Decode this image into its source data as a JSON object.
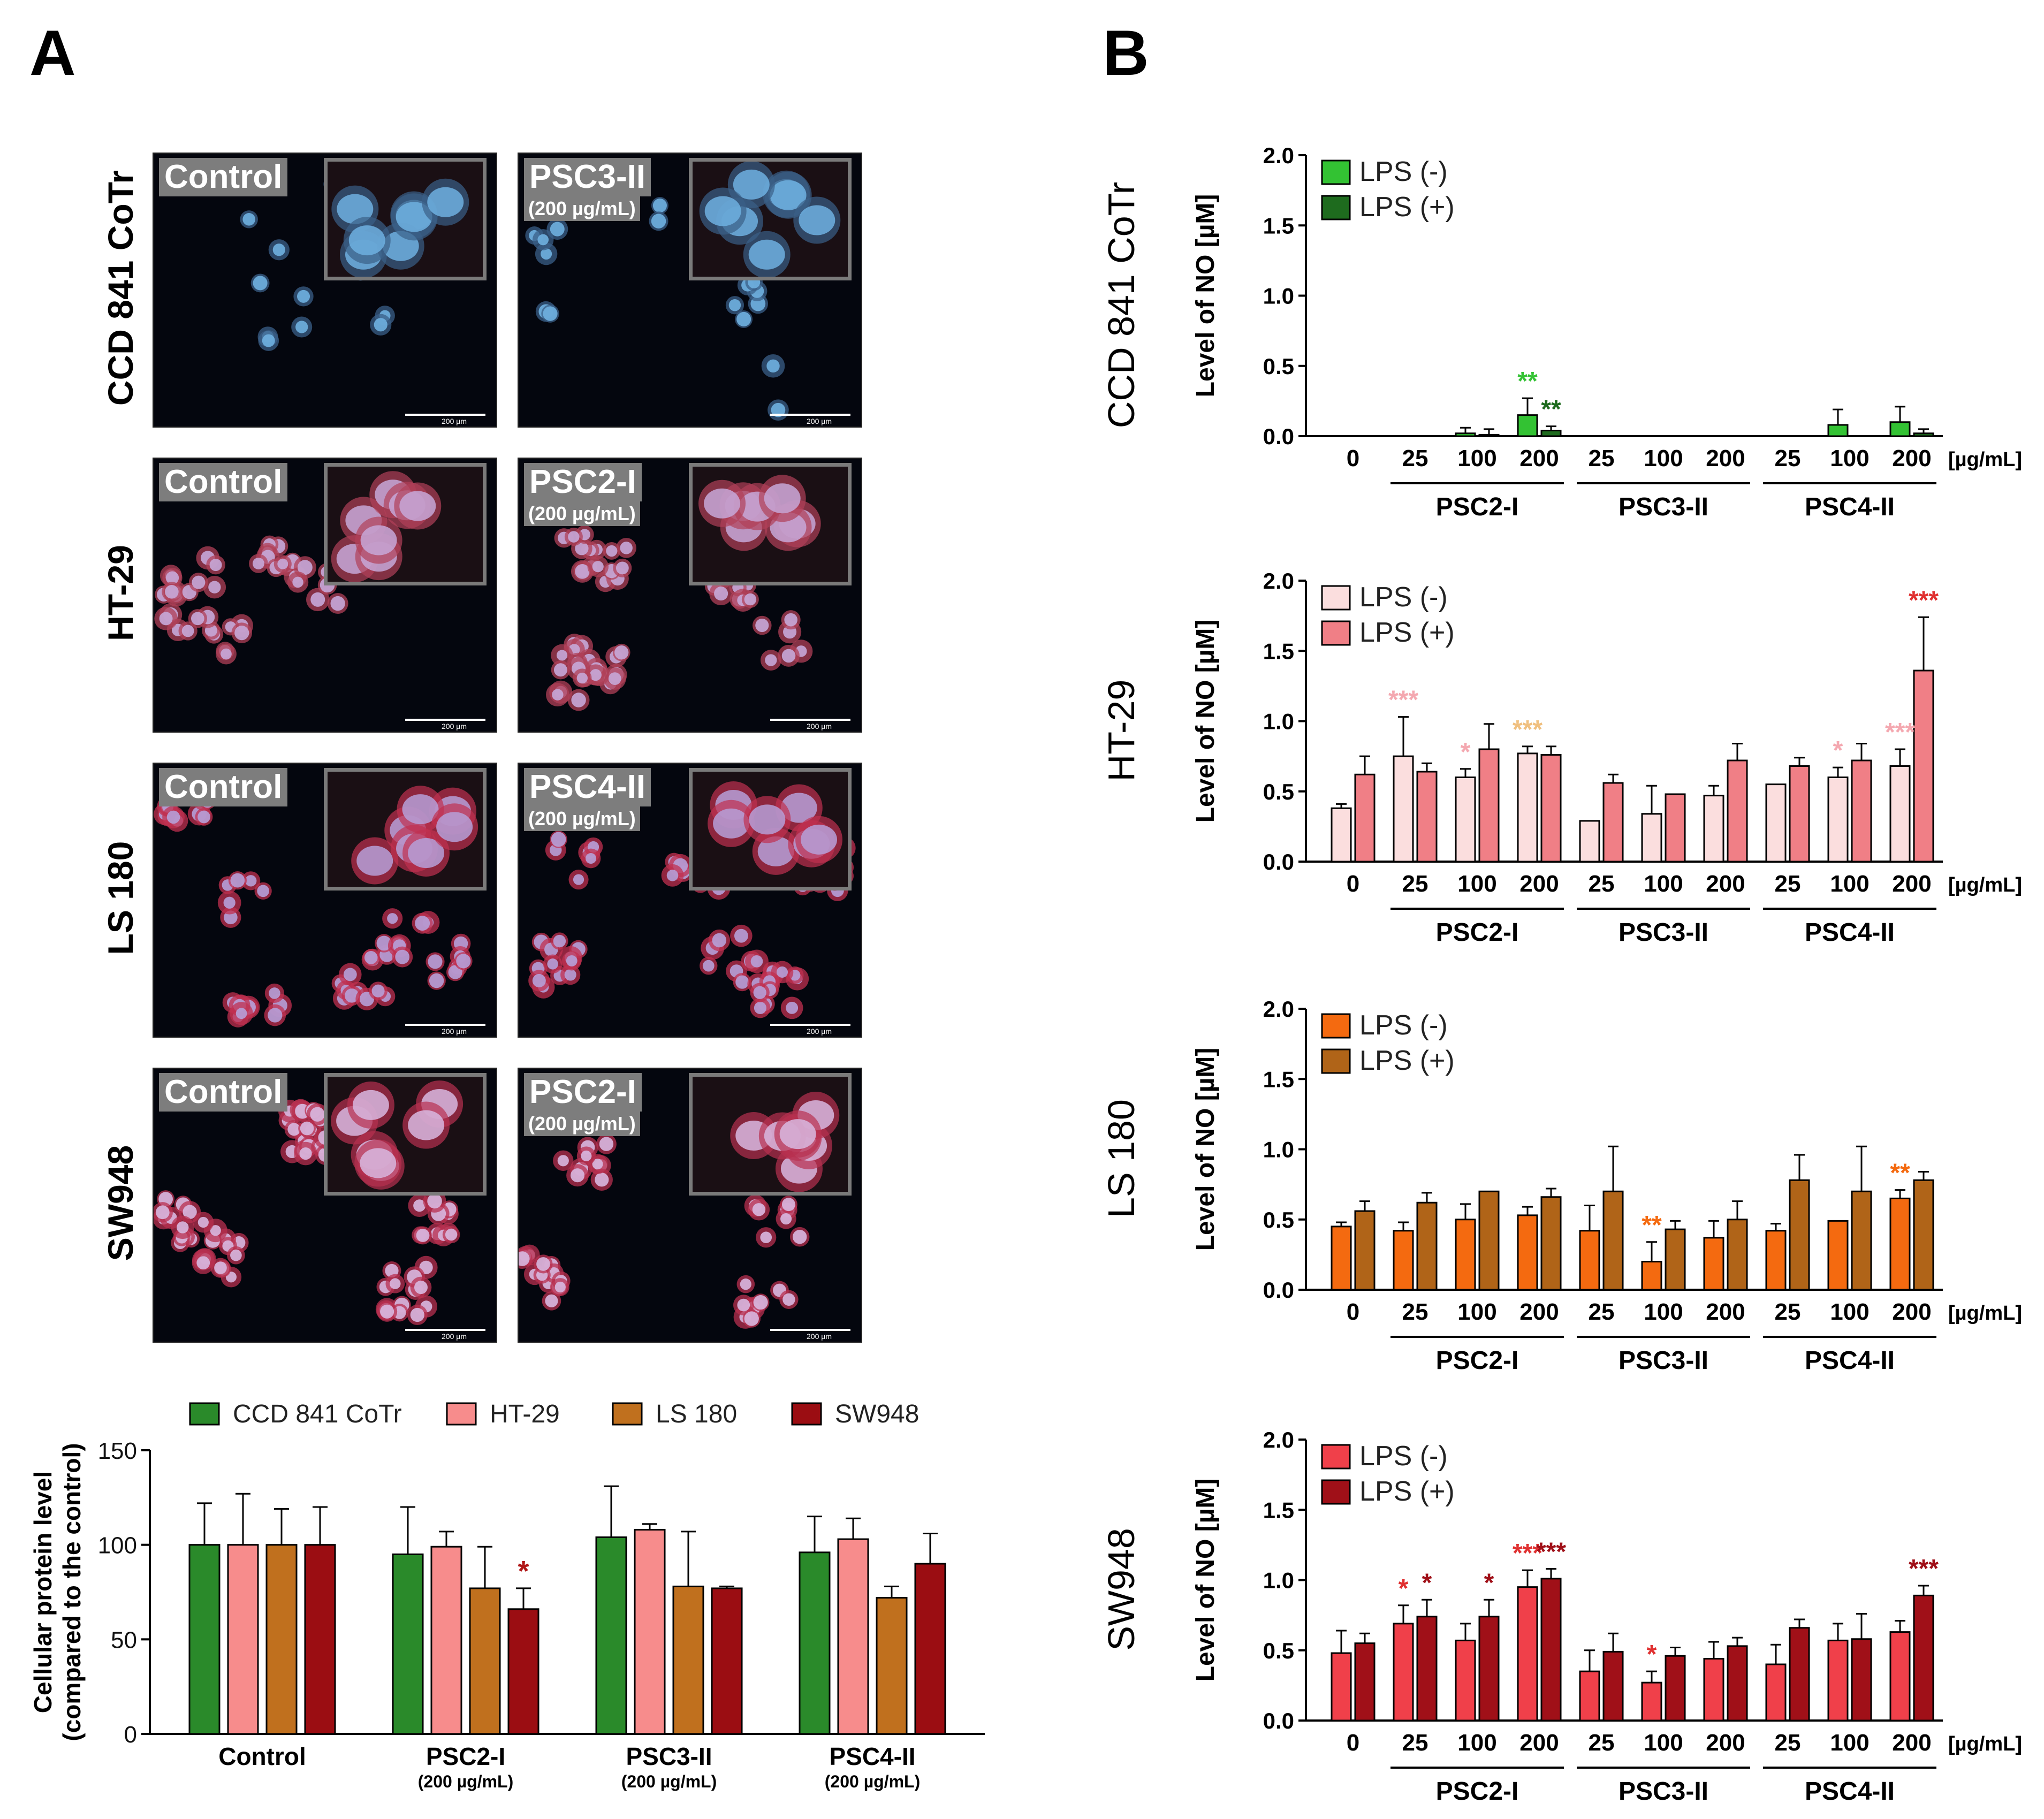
{
  "panels": {
    "a": "A",
    "b": "B"
  },
  "micrographs": {
    "rows": [
      {
        "cell_line": "CCD 841 CoTr",
        "left_label": "Control",
        "right_label": "PSC3-II",
        "right_dose": "(200 µg/mL)",
        "nucleus_color": "#6fb0e0",
        "cyto_color": "#3a5f88"
      },
      {
        "cell_line": "HT-29",
        "left_label": "Control",
        "right_label": "PSC2-I",
        "right_dose": "(200 µg/mL)",
        "nucleus_color": "#c7a8d8",
        "cyto_color": "#b04058"
      },
      {
        "cell_line": "LS 180",
        "left_label": "Control",
        "right_label": "PSC4-II",
        "right_dose": "(200 µg/mL)",
        "nucleus_color": "#b6a0d8",
        "cyto_color": "#c03050"
      },
      {
        "cell_line": "SW948",
        "left_label": "Control",
        "right_label": "PSC2-I",
        "right_dose": "(200 µg/mL)",
        "nucleus_color": "#d8b8e0",
        "cyto_color": "#b83050"
      }
    ],
    "scalebar": "200 µm"
  },
  "chart_data": [
    {
      "type": "bar",
      "id": "protein",
      "ylabel": "Cellular protein level",
      "ylabel2": "(compared to the control)",
      "ylim": [
        0,
        150
      ],
      "yticks": [
        "0",
        "50",
        "100",
        "150"
      ],
      "groups": [
        {
          "label": "Control",
          "sub": ""
        },
        {
          "label": "PSC2-I",
          "sub": "(200 µg/mL)"
        },
        {
          "label": "PSC3-II",
          "sub": "(200 µg/mL)"
        },
        {
          "label": "PSC4-II",
          "sub": "(200 µg/mL)"
        }
      ],
      "series": [
        {
          "name": "CCD 841 CoTr",
          "color": "#2a8a2a",
          "values": [
            100,
            95,
            104,
            96
          ],
          "errors": [
            22,
            25,
            27,
            19
          ]
        },
        {
          "name": "HT-29",
          "color": "#f78c8c",
          "values": [
            100,
            99,
            108,
            103
          ],
          "errors": [
            27,
            8,
            3,
            11
          ]
        },
        {
          "name": "LS 180",
          "color": "#c0701e",
          "values": [
            100,
            77,
            78,
            72
          ],
          "errors": [
            19,
            22,
            29,
            6
          ]
        },
        {
          "name": "SW948",
          "color": "#9b0d12",
          "values": [
            100,
            66,
            77,
            90
          ],
          "errors": [
            20,
            11,
            1,
            16
          ]
        }
      ],
      "annotations": [
        {
          "group": 1,
          "series": 3,
          "text": "*",
          "color": "#b01818"
        }
      ]
    },
    {
      "type": "bar",
      "id": "ccd",
      "row_label": "CCD 841 CoTr",
      "ylabel": "Level of NO [µM]",
      "ylim": [
        0,
        2.0
      ],
      "yticks": [
        "0.0",
        "0.5",
        "1.0",
        "1.5",
        "2.0"
      ],
      "categories": [
        "0",
        "25",
        "100",
        "200",
        "25",
        "100",
        "200",
        "25",
        "100",
        "200"
      ],
      "unit": "[µg/mL]",
      "groups": [
        "PSC2-I",
        "PSC3-II",
        "PSC4-II"
      ],
      "series": [
        {
          "name": "LPS (-)",
          "color": "#33c233",
          "values": [
            0,
            0,
            0.02,
            0.15,
            0,
            0,
            0,
            0,
            0.08,
            0.1
          ],
          "errors": [
            0,
            0,
            0.04,
            0.12,
            0,
            0,
            0,
            0,
            0.11,
            0.11
          ]
        },
        {
          "name": "LPS (+)",
          "color": "#1e6b1e",
          "values": [
            0,
            0,
            0.01,
            0.04,
            0,
            0,
            0,
            0,
            0,
            0.02
          ],
          "errors": [
            0,
            0,
            0.04,
            0.03,
            0,
            0,
            0,
            0,
            0,
            0.03
          ]
        }
      ],
      "annotations": [
        {
          "index": 3,
          "series": 0,
          "text": "**",
          "color": "#33c233"
        },
        {
          "index": 3,
          "series": 1,
          "text": "**",
          "color": "#1e6b1e"
        }
      ]
    },
    {
      "type": "bar",
      "id": "ht29",
      "row_label": "HT-29",
      "ylabel": "Level of NO [µM]",
      "ylim": [
        0,
        2.0
      ],
      "yticks": [
        "0.0",
        "0.5",
        "1.0",
        "1.5",
        "2.0"
      ],
      "categories": [
        "0",
        "25",
        "100",
        "200",
        "25",
        "100",
        "200",
        "25",
        "100",
        "200"
      ],
      "unit": "[µg/mL]",
      "groups": [
        "PSC2-I",
        "PSC3-II",
        "PSC4-II"
      ],
      "series": [
        {
          "name": "LPS (-)",
          "color": "#fbdede",
          "values": [
            0.38,
            0.75,
            0.6,
            0.77,
            0.29,
            0.34,
            0.47,
            0.55,
            0.6,
            0.68
          ],
          "errors": [
            0.03,
            0.28,
            0.06,
            0.05,
            0,
            0.2,
            0.07,
            0,
            0.07,
            0.12
          ]
        },
        {
          "name": "LPS (+)",
          "color": "#f07f86",
          "values": [
            0.62,
            0.64,
            0.8,
            0.76,
            0.56,
            0.48,
            0.72,
            0.68,
            0.72,
            1.36
          ],
          "errors": [
            0.13,
            0.06,
            0.18,
            0.06,
            0.06,
            0,
            0.12,
            0.06,
            0.12,
            0.38
          ]
        }
      ],
      "annotations": [
        {
          "index": 1,
          "series": 0,
          "text": "***",
          "color": "#f4a8b0"
        },
        {
          "index": 2,
          "series": 0,
          "text": "*",
          "color": "#f4a8b0"
        },
        {
          "index": 3,
          "series": 0,
          "text": "***",
          "color": "#f0c080"
        },
        {
          "index": 8,
          "series": 0,
          "text": "*",
          "color": "#f4a8b0"
        },
        {
          "index": 9,
          "series": 0,
          "text": "***",
          "color": "#f4a8b0"
        },
        {
          "index": 9,
          "series": 1,
          "text": "***",
          "color": "#e03030"
        }
      ]
    },
    {
      "type": "bar",
      "id": "ls180",
      "row_label": "LS 180",
      "ylabel": "Level of NO [µM]",
      "ylim": [
        0,
        2.0
      ],
      "yticks": [
        "0.0",
        "0.5",
        "1.0",
        "1.5",
        "2.0"
      ],
      "categories": [
        "0",
        "25",
        "100",
        "200",
        "25",
        "100",
        "200",
        "25",
        "100",
        "200"
      ],
      "unit": "[µg/mL]",
      "groups": [
        "PSC2-I",
        "PSC3-II",
        "PSC4-II"
      ],
      "series": [
        {
          "name": "LPS (-)",
          "color": "#f46a10",
          "values": [
            0.45,
            0.42,
            0.5,
            0.53,
            0.42,
            0.2,
            0.37,
            0.42,
            0.49,
            0.65
          ],
          "errors": [
            0.03,
            0.06,
            0.11,
            0.06,
            0.18,
            0.14,
            0.12,
            0.05,
            0,
            0.06
          ]
        },
        {
          "name": "LPS (+)",
          "color": "#b06418",
          "values": [
            0.56,
            0.62,
            0.7,
            0.66,
            0.7,
            0.43,
            0.5,
            0.78,
            0.7,
            0.78
          ],
          "errors": [
            0.07,
            0.07,
            0,
            0.06,
            0.32,
            0.06,
            0.13,
            0.18,
            0.32,
            0.06
          ]
        }
      ],
      "annotations": [
        {
          "index": 5,
          "series": 0,
          "text": "**",
          "color": "#f46a10"
        },
        {
          "index": 9,
          "series": 0,
          "text": "**",
          "color": "#f46a10"
        }
      ]
    },
    {
      "type": "bar",
      "id": "sw948",
      "row_label": "SW948",
      "ylabel": "Level of NO [µM]",
      "ylim": [
        0,
        2.0
      ],
      "yticks": [
        "0.0",
        "0.5",
        "1.0",
        "1.5",
        "2.0"
      ],
      "categories": [
        "0",
        "25",
        "100",
        "200",
        "25",
        "100",
        "200",
        "25",
        "100",
        "200"
      ],
      "unit": "[µg/mL]",
      "groups": [
        "PSC2-I",
        "PSC3-II",
        "PSC4-II"
      ],
      "series": [
        {
          "name": "LPS (-)",
          "color": "#f0404a",
          "values": [
            0.48,
            0.69,
            0.57,
            0.95,
            0.35,
            0.27,
            0.44,
            0.4,
            0.57,
            0.63
          ],
          "errors": [
            0.16,
            0.13,
            0.12,
            0.12,
            0.15,
            0.08,
            0.12,
            0.14,
            0.12,
            0.08
          ]
        },
        {
          "name": "LPS (+)",
          "color": "#a01018",
          "values": [
            0.55,
            0.74,
            0.74,
            1.01,
            0.49,
            0.46,
            0.53,
            0.66,
            0.58,
            0.89
          ],
          "errors": [
            0.07,
            0.12,
            0.12,
            0.07,
            0.13,
            0.06,
            0.06,
            0.06,
            0.18,
            0.07
          ]
        }
      ],
      "annotations": [
        {
          "index": 1,
          "series": 0,
          "text": "*",
          "color": "#e03030"
        },
        {
          "index": 1,
          "series": 1,
          "text": "*",
          "color": "#a01018"
        },
        {
          "index": 2,
          "series": 1,
          "text": "*",
          "color": "#a01018"
        },
        {
          "index": 3,
          "series": 0,
          "text": "***",
          "color": "#e03030"
        },
        {
          "index": 3,
          "series": 1,
          "text": "***",
          "color": "#a01018"
        },
        {
          "index": 5,
          "series": 0,
          "text": "*",
          "color": "#e03030"
        },
        {
          "index": 9,
          "series": 1,
          "text": "***",
          "color": "#a01018"
        }
      ]
    }
  ]
}
